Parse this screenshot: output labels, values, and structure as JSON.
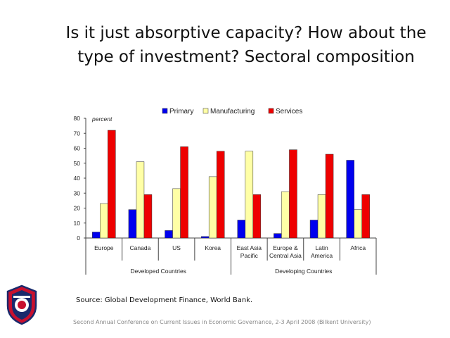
{
  "slide": {
    "title_line1": "Is it just absorptive capacity? How about the",
    "title_line2": "type of investment? Sectoral composition",
    "source": "Source: Global Development Finance, World Bank.",
    "footer": "Second Annual Conference on Current Issues in  Economic Governance, 2-3 April 2008 (Bilkent University)"
  },
  "chart_data": {
    "type": "bar",
    "ylabel": "percent",
    "ylim": [
      0,
      80
    ],
    "yticks": [
      0,
      10,
      20,
      30,
      40,
      50,
      60,
      70,
      80
    ],
    "legend_position": "top",
    "categories": [
      [
        "Europe"
      ],
      [
        "Canada"
      ],
      [
        "US"
      ],
      [
        "Korea"
      ],
      [
        "East Asia",
        "Pacific"
      ],
      [
        "Europe &",
        "Central Asia"
      ],
      [
        "Latin",
        "America"
      ],
      [
        "Africa"
      ]
    ],
    "groups": [
      {
        "label": "Developed Countries",
        "count": 4
      },
      {
        "label": "Developing Countries",
        "count": 4
      }
    ],
    "series": [
      {
        "name": "Primary",
        "color": "#0000ee",
        "values": [
          4,
          19,
          5,
          1,
          12,
          3,
          12,
          52
        ]
      },
      {
        "name": "Manufacturing",
        "color": "#ffffa6",
        "values": [
          23,
          51,
          33,
          41,
          58,
          31,
          29,
          19
        ]
      },
      {
        "name": "Services",
        "color": "#ee0000",
        "values": [
          72,
          29,
          61,
          58,
          29,
          59,
          56,
          29
        ]
      }
    ]
  }
}
